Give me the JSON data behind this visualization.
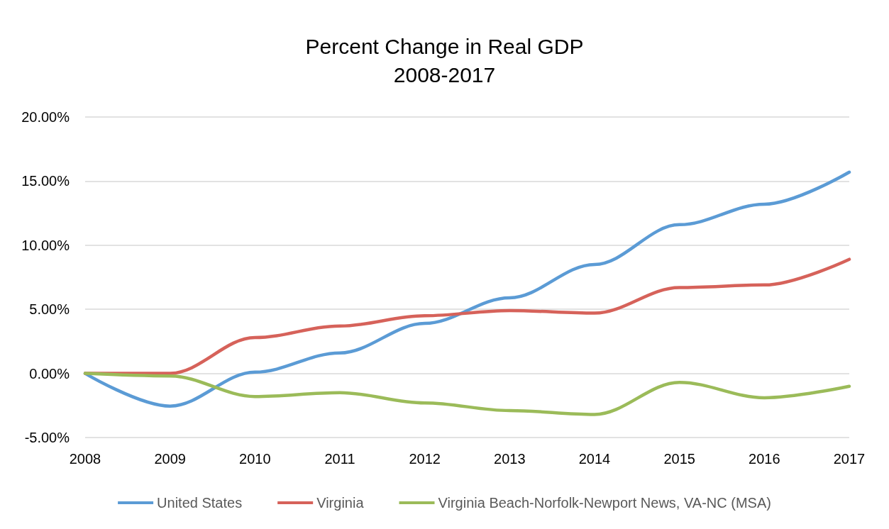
{
  "chart_data": {
    "type": "line",
    "title": "Percent Change in Real GDP\n2008-2017",
    "categories": [
      "2008",
      "2009",
      "2010",
      "2011",
      "2012",
      "2013",
      "2014",
      "2015",
      "2016",
      "2017"
    ],
    "series": [
      {
        "name": "United States",
        "color": "#5b9bd5",
        "values": [
          0,
          -2.55,
          0.1,
          1.6,
          3.9,
          5.9,
          8.5,
          11.6,
          13.2,
          15.7
        ]
      },
      {
        "name": "Virginia",
        "color": "#d6625a",
        "values": [
          0,
          0,
          2.8,
          3.7,
          4.5,
          4.9,
          4.7,
          6.7,
          6.9,
          8.9
        ]
      },
      {
        "name": "Virginia Beach-Norfolk-Newport News, VA-NC (MSA)",
        "color": "#9bbb59",
        "values": [
          0,
          -0.2,
          -1.8,
          -1.5,
          -2.3,
          -2.9,
          -3.2,
          -0.7,
          -1.9,
          -1.0
        ]
      }
    ],
    "ylim": [
      -5,
      20
    ],
    "yticks": [
      {
        "value": -5,
        "label": "-5.00%"
      },
      {
        "value": 0,
        "label": "0.00%"
      },
      {
        "value": 5,
        "label": "5.00%"
      },
      {
        "value": 10,
        "label": "10.00%"
      },
      {
        "value": 15,
        "label": "15.00%"
      },
      {
        "value": 20,
        "label": "20.00%"
      }
    ],
    "grid": "y",
    "legend": "bottom",
    "marker": "none",
    "line_style": "solid"
  }
}
